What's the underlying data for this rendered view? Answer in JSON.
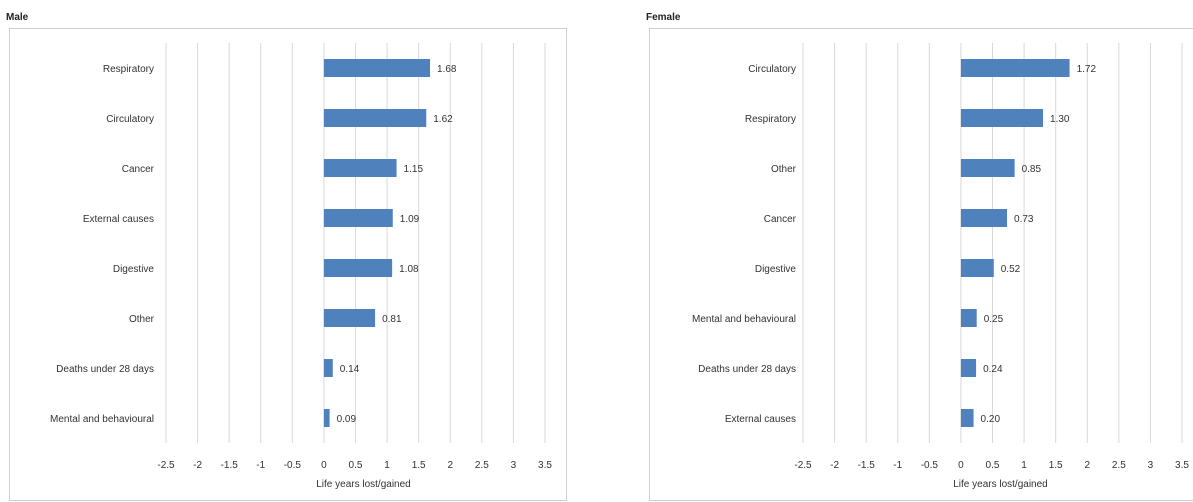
{
  "chart_data": [
    {
      "type": "bar",
      "orientation": "horizontal",
      "title": "Male",
      "xlabel": "Life years lost/gained",
      "categories": [
        "Respiratory",
        "Circulatory",
        "Cancer",
        "External causes",
        "Digestive",
        "Other",
        "Deaths under 28 days",
        "Mental and behavioural"
      ],
      "values": [
        1.68,
        1.62,
        1.15,
        1.09,
        1.08,
        0.81,
        0.14,
        0.09
      ],
      "value_labels": [
        "1.68",
        "1.62",
        "1.15",
        "1.09",
        "1.08",
        "0.81",
        "0.14",
        "0.09"
      ],
      "xlim": [
        -2.5,
        3.5
      ],
      "xticks": [
        "-2.5",
        "-2",
        "-1.5",
        "-1",
        "-0.5",
        "0",
        "0.5",
        "1",
        "1.5",
        "2",
        "2.5",
        "3",
        "3.5"
      ],
      "grid": "vertical",
      "bar_color": "#4f81bd"
    },
    {
      "type": "bar",
      "orientation": "horizontal",
      "title": "Female",
      "xlabel": "Life years lost/gained",
      "categories": [
        "Circulatory",
        "Respiratory",
        "Other",
        "Cancer",
        "Digestive",
        "Mental and behavioural",
        "Deaths under 28 days",
        "External causes"
      ],
      "values": [
        1.72,
        1.3,
        0.85,
        0.73,
        0.52,
        0.25,
        0.24,
        0.2
      ],
      "value_labels": [
        "1.72",
        "1.30",
        "0.85",
        "0.73",
        "0.52",
        "0.25",
        "0.24",
        "0.20"
      ],
      "xlim": [
        -2.5,
        3.5
      ],
      "xticks": [
        "-2.5",
        "-2",
        "-1.5",
        "-1",
        "-0.5",
        "0",
        "0.5",
        "1",
        "1.5",
        "2",
        "2.5",
        "3",
        "3.5"
      ],
      "grid": "vertical",
      "bar_color": "#4f81bd"
    }
  ]
}
